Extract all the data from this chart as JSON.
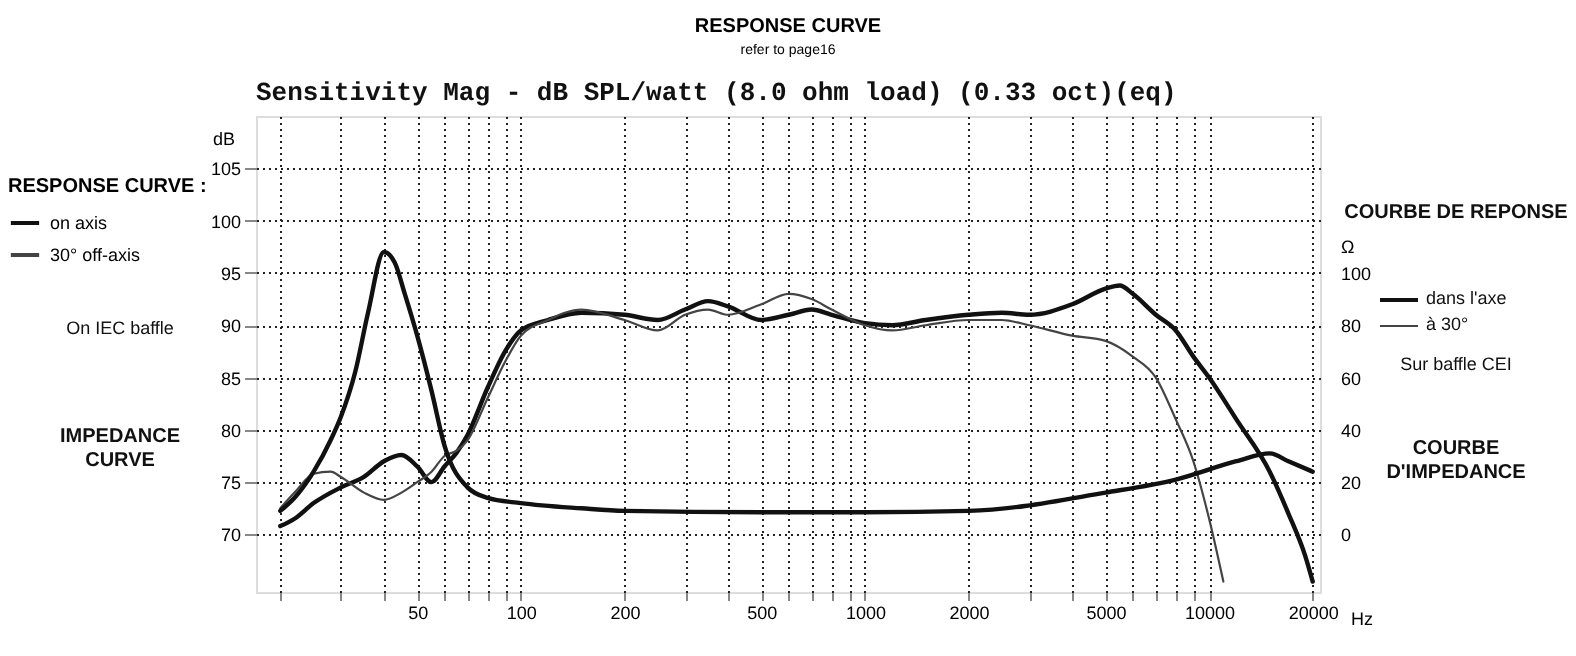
{
  "chart_data": {
    "type": "line",
    "title": "RESPONSE CURVE",
    "subtitle": "refer to page16",
    "xlabel": "Hz",
    "ylabel": "dB",
    "y2label": "Ω",
    "legend_title": "RESPONSE CURVE :",
    "log": "x",
    "grid": true,
    "legend": "left",
    "annotations": [
      "Sensitivity Mag - dB SPL/watt (8.0 ohm load) (0.33 oct)(eq)",
      "On IEC baffle",
      "IMPEDANCE CURVE",
      "COURBE DE REPONSE",
      "dans l'axe",
      "à 30°",
      "Sur baffle CEI",
      "COURBE D'IMPEDANCE"
    ],
    "xlim": [
      17,
      21000
    ],
    "ylim": [
      64.5,
      110
    ],
    "y2lim": [
      -22,
      160
    ],
    "xticks": [
      {
        "value": 20,
        "label": null
      },
      {
        "value": 30,
        "label": null
      },
      {
        "value": 40,
        "label": null
      },
      50,
      {
        "value": 60,
        "label": null
      },
      {
        "value": 70,
        "label": null
      },
      {
        "value": 80,
        "label": null
      },
      {
        "value": 90,
        "label": null
      },
      100,
      200,
      {
        "value": 300,
        "label": null
      },
      {
        "value": 400,
        "label": null
      },
      500,
      {
        "value": 600,
        "label": null
      },
      {
        "value": 700,
        "label": null
      },
      {
        "value": 800,
        "label": null
      },
      {
        "value": 900,
        "label": null
      },
      1000,
      2000,
      {
        "value": 3000,
        "label": null
      },
      {
        "value": 4000,
        "label": null
      },
      5000,
      {
        "value": 6000,
        "label": null
      },
      {
        "value": 7000,
        "label": null
      },
      {
        "value": 8000,
        "label": null
      },
      {
        "value": 9000,
        "label": null
      },
      10000,
      20000
    ],
    "yticks": [
      70,
      75,
      80,
      85,
      90,
      95,
      100,
      105
    ],
    "y2ticks": [
      0,
      20,
      40,
      60,
      80,
      100
    ],
    "series": [
      {
        "name": "on axis",
        "color": "#111111",
        "x": [
          20,
          22,
          25,
          30,
          35,
          40,
          45,
          50,
          55,
          60,
          65,
          70,
          80,
          90,
          100,
          120,
          150,
          200,
          250,
          300,
          350,
          400,
          500,
          600,
          700,
          800,
          1000,
          1200,
          1500,
          2000,
          2500,
          3000,
          4000,
          5000,
          5500,
          6000,
          7000,
          8000,
          9000,
          10000,
          12000,
          15000,
          17000,
          19000,
          20000
        ],
        "values": [
          70.8,
          71.5,
          73,
          74.5,
          75.5,
          77,
          77.6,
          76.5,
          75,
          76.5,
          77.8,
          79.5,
          84,
          87.5,
          89.5,
          90.5,
          91.2,
          91,
          90.5,
          91.5,
          92.3,
          91.8,
          90.5,
          91,
          91.5,
          91,
          90.2,
          90,
          90.5,
          91,
          91.2,
          91,
          92,
          93.5,
          93.8,
          93,
          91,
          89.5,
          87,
          85,
          81,
          76,
          72,
          68,
          65.5
        ]
      },
      {
        "name": "30° off-axis",
        "color": "#444444",
        "x": [
          20,
          22,
          25,
          28,
          30,
          35,
          40,
          45,
          50,
          55,
          60,
          65,
          70,
          80,
          90,
          100,
          120,
          150,
          200,
          250,
          300,
          350,
          400,
          500,
          600,
          700,
          800,
          1000,
          1200,
          1500,
          2000,
          2500,
          3000,
          4000,
          5000,
          6000,
          7000,
          8000,
          9000,
          10000,
          11000
        ],
        "values": [
          72.5,
          74,
          75.8,
          76,
          75.5,
          74,
          73.3,
          74,
          75,
          76,
          77.5,
          78,
          79,
          83,
          86.5,
          89,
          90.5,
          91.5,
          90.5,
          89.5,
          91,
          91.5,
          91,
          92,
          93,
          92.5,
          91.5,
          90,
          89.5,
          90,
          90.5,
          90.5,
          90,
          89,
          88.5,
          87,
          85,
          81,
          77,
          71.5,
          65.5
        ]
      },
      {
        "color": "#111111",
        "axis": "y2",
        "x": [
          20,
          22,
          25,
          28,
          30,
          33,
          36,
          40,
          43,
          46,
          50,
          55,
          60,
          70,
          80,
          100,
          150,
          200,
          500,
          1000,
          2000,
          5000,
          8000,
          12000,
          15000,
          17000,
          20000
        ],
        "values": [
          9,
          14,
          24,
          36,
          45,
          62,
          85,
          108,
          104,
          92,
          76,
          55,
          34,
          18,
          14,
          12,
          10,
          9,
          8.5,
          8.5,
          9,
          16,
          21,
          28,
          31,
          28,
          24
        ]
      }
    ]
  }
}
